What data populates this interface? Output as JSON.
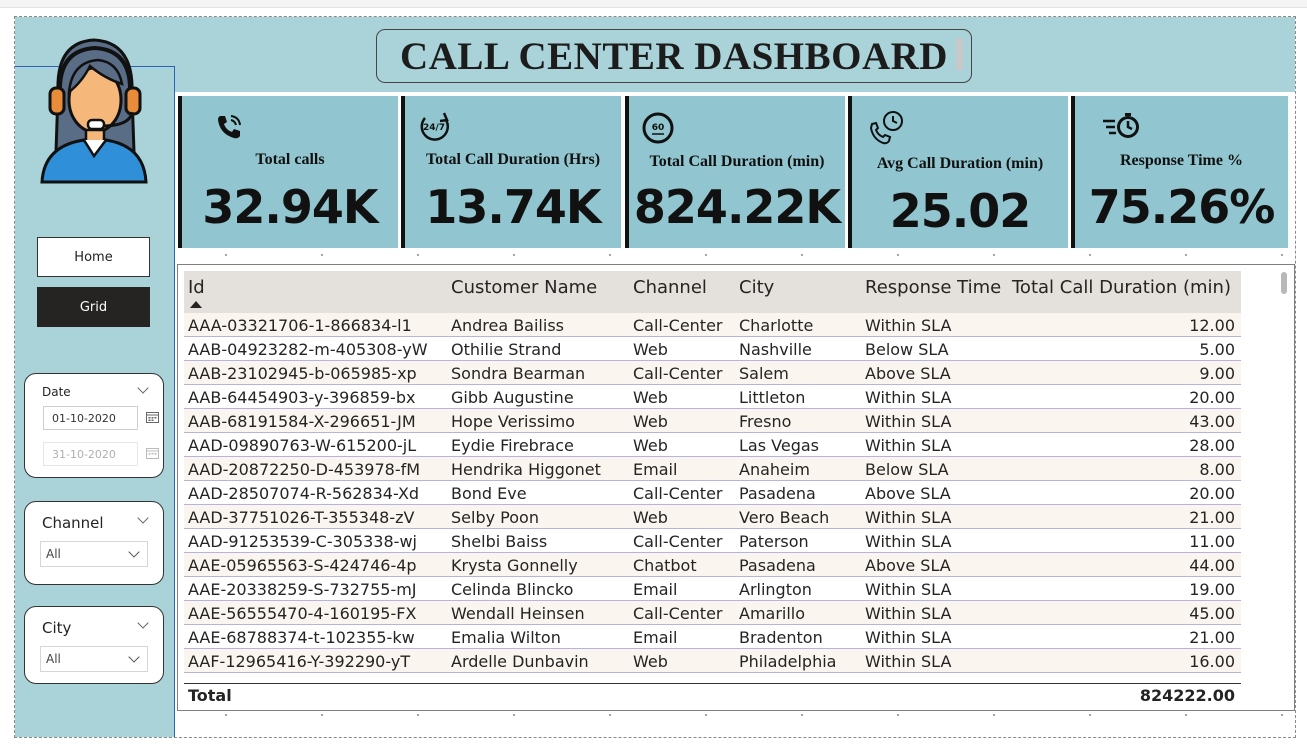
{
  "dashboard": {
    "title": "CALL CENTER DASHBOARD"
  },
  "nav": {
    "home_label": "Home",
    "grid_label": "Grid"
  },
  "slicers": {
    "date": {
      "title": "Date",
      "start": "01-10-2020",
      "end": "31-10-2020"
    },
    "channel": {
      "title": "Channel",
      "selected": "All"
    },
    "city": {
      "title": "City",
      "selected": "All"
    }
  },
  "kpis": [
    {
      "label": "Total calls",
      "value": "32.94K",
      "icon": "phone-ringing-icon"
    },
    {
      "label": "Total Call Duration (Hrs)",
      "value": "13.74K",
      "icon": "24-7-icon"
    },
    {
      "label": "Total Call Duration (min)",
      "value": "824.22K",
      "icon": "60-minutes-icon"
    },
    {
      "label": "Avg Call Duration (min)",
      "value": "25.02",
      "icon": "phone-clock-icon"
    },
    {
      "label": "Response Time %",
      "value": "75.26%",
      "icon": "fast-clock-icon"
    }
  ],
  "table": {
    "columns": [
      "Id",
      "Customer Name",
      "Channel",
      "City",
      "Response Time",
      "Total Call Duration (min)"
    ],
    "rows": [
      [
        "AAA-03321706-1-866834-l1",
        "Andrea Bailiss",
        "Call-Center",
        "Charlotte",
        "Within SLA",
        "12.00"
      ],
      [
        "AAB-04923282-m-405308-yW",
        "Othilie Strand",
        "Web",
        "Nashville",
        "Below SLA",
        "5.00"
      ],
      [
        "AAB-23102945-b-065985-xp",
        "Sondra Bearman",
        "Call-Center",
        "Salem",
        "Above SLA",
        "9.00"
      ],
      [
        "AAB-64454903-y-396859-bx",
        "Gibb Augustine",
        "Web",
        "Littleton",
        "Within SLA",
        "20.00"
      ],
      [
        "AAB-68191584-X-296651-JM",
        "Hope Verissimo",
        "Web",
        "Fresno",
        "Within SLA",
        "43.00"
      ],
      [
        "AAD-09890763-W-615200-jL",
        "Eydie Firebrace",
        "Web",
        "Las Vegas",
        "Within SLA",
        "28.00"
      ],
      [
        "AAD-20872250-D-453978-fM",
        "Hendrika Higgonet",
        "Email",
        "Anaheim",
        "Below SLA",
        "8.00"
      ],
      [
        "AAD-28507074-R-562834-Xd",
        "Bond Eve",
        "Call-Center",
        "Pasadena",
        "Above SLA",
        "20.00"
      ],
      [
        "AAD-37751026-T-355348-zV",
        "Selby Poon",
        "Web",
        "Vero Beach",
        "Within SLA",
        "21.00"
      ],
      [
        "AAD-91253539-C-305338-wj",
        "Shelbi Baiss",
        "Call-Center",
        "Paterson",
        "Within SLA",
        "11.00"
      ],
      [
        "AAE-05965563-S-424746-4p",
        "Krysta Gonnelly",
        "Chatbot",
        "Pasadena",
        "Above SLA",
        "44.00"
      ],
      [
        "AAE-20338259-S-732755-mJ",
        "Celinda Blincko",
        "Email",
        "Arlington",
        "Within SLA",
        "19.00"
      ],
      [
        "AAE-56555470-4-160195-FX",
        "Wendall Heinsen",
        "Call-Center",
        "Amarillo",
        "Within SLA",
        "45.00"
      ],
      [
        "AAE-68788374-t-102355-kw",
        "Emalia Wilton",
        "Email",
        "Bradenton",
        "Within SLA",
        "21.00"
      ],
      [
        "AAF-12965416-Y-392290-yT",
        "Ardelle Dunbavin",
        "Web",
        "Philadelphia",
        "Within SLA",
        "16.00"
      ]
    ],
    "total_label": "Total",
    "total_value": "824222.00"
  }
}
